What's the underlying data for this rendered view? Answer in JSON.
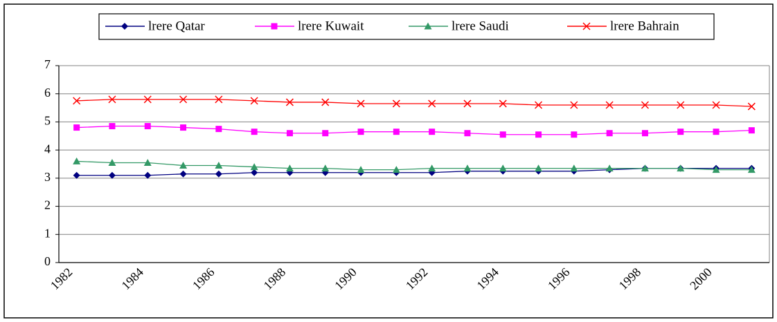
{
  "chart_data": {
    "type": "line",
    "categories": [
      "1982",
      null,
      "1984",
      null,
      "1986",
      null,
      "1988",
      null,
      "1990",
      null,
      "1992",
      null,
      "1994",
      null,
      "1996",
      null,
      "1998",
      null,
      "2000",
      null
    ],
    "series": [
      {
        "name": "lrere Qatar",
        "color": "#000080",
        "marker": "diamond",
        "values": [
          3.1,
          3.1,
          3.1,
          3.15,
          3.15,
          3.2,
          3.2,
          3.2,
          3.2,
          3.2,
          3.2,
          3.25,
          3.25,
          3.25,
          3.25,
          3.3,
          3.35,
          3.35,
          3.35,
          3.35
        ]
      },
      {
        "name": "lrere Kuwait",
        "color": "#ff00ff",
        "marker": "square",
        "values": [
          4.8,
          4.85,
          4.85,
          4.8,
          4.75,
          4.65,
          4.6,
          4.6,
          4.65,
          4.65,
          4.65,
          4.6,
          4.55,
          4.55,
          4.55,
          4.6,
          4.6,
          4.65,
          4.65,
          4.7
        ]
      },
      {
        "name": "lrere Saudi",
        "color": "#339966",
        "marker": "triangle",
        "values": [
          3.6,
          3.55,
          3.55,
          3.45,
          3.45,
          3.4,
          3.35,
          3.35,
          3.3,
          3.3,
          3.35,
          3.35,
          3.35,
          3.35,
          3.35,
          3.35,
          3.35,
          3.35,
          3.3,
          3.3
        ]
      },
      {
        "name": "lrere Bahrain",
        "color": "#ff0000",
        "marker": "x",
        "values": [
          5.75,
          5.8,
          5.8,
          5.8,
          5.8,
          5.75,
          5.7,
          5.7,
          5.65,
          5.65,
          5.65,
          5.65,
          5.65,
          5.6,
          5.6,
          5.6,
          5.6,
          5.6,
          5.6,
          5.55
        ]
      }
    ],
    "ylim": [
      0,
      7
    ],
    "yticks": [
      0,
      1,
      2,
      3,
      4,
      5,
      6,
      7
    ],
    "grid": true,
    "legend": "top"
  }
}
